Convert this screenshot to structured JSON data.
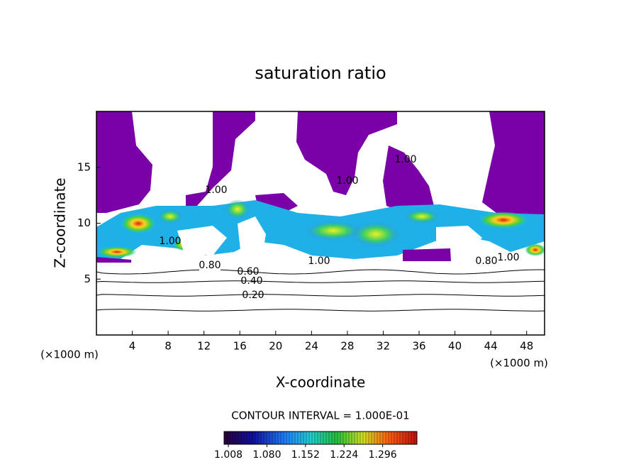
{
  "chart_data": {
    "type": "contour",
    "title": "saturation ratio",
    "x_label": "X-coordinate",
    "y_label": "Z-coordinate",
    "x_unit": "(×1000 m)",
    "x_unit_right": "(×1000 m)",
    "xlim": [
      0,
      50
    ],
    "ylim": [
      0,
      20
    ],
    "xticks": [
      4,
      8,
      12,
      16,
      20,
      24,
      28,
      32,
      36,
      40,
      44,
      48
    ],
    "yticks": [
      5,
      10,
      15
    ],
    "contour_levels": [
      {
        "value": 0.2,
        "label": "0.20"
      },
      {
        "value": 0.4,
        "label": "0.40"
      },
      {
        "value": 0.6,
        "label": "0.60"
      },
      {
        "value": 0.8,
        "label": "0.80"
      },
      {
        "value": 1.0,
        "label": "1.00"
      }
    ],
    "contour_interval_text": "CONTOUR INTERVAL = 1.000E-01",
    "colorbar_lim": [
      1.0,
      1.36
    ],
    "colorbar_ticks": [
      1.008,
      {
        "value": 1.08,
        "label": "1.080"
      },
      1.152,
      1.224,
      1.296
    ]
  }
}
